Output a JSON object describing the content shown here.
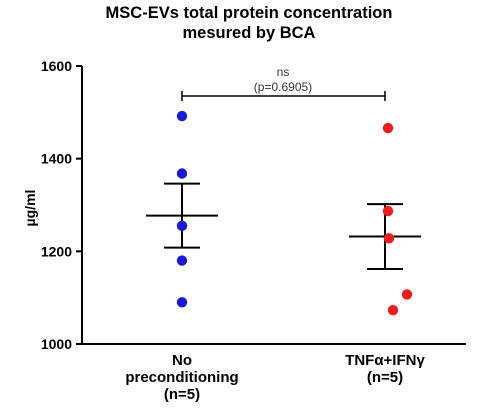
{
  "chart_data": {
    "type": "scatter",
    "title_line1": "MSC-EVs total protein concentration",
    "title_line2": "mesured by BCA",
    "ylabel": "µg/ml",
    "ylim": [
      1000,
      1600
    ],
    "yticks": [
      "1000",
      "1200",
      "1400",
      "1600"
    ],
    "categories": [
      {
        "line1": "No",
        "line2": "preconditioning",
        "line3": "(n=5)"
      },
      {
        "line1": "TNFα+IFNγ",
        "line2": "(n=5)",
        "line3": ""
      }
    ],
    "series": [
      {
        "color": "#1a1ad6",
        "points": [
          1492,
          1368,
          1255,
          1180,
          1090
        ],
        "mean": 1277,
        "sem_low": 1208,
        "sem_high": 1346
      },
      {
        "color": "#ee1c1c",
        "points": [
          1466,
          1287,
          1228,
          1107,
          1073
        ],
        "mean": 1232,
        "sem_low": 1162,
        "sem_high": 1302
      }
    ],
    "significance": {
      "label": "ns",
      "p_text": "(p=0.6905)"
    }
  }
}
